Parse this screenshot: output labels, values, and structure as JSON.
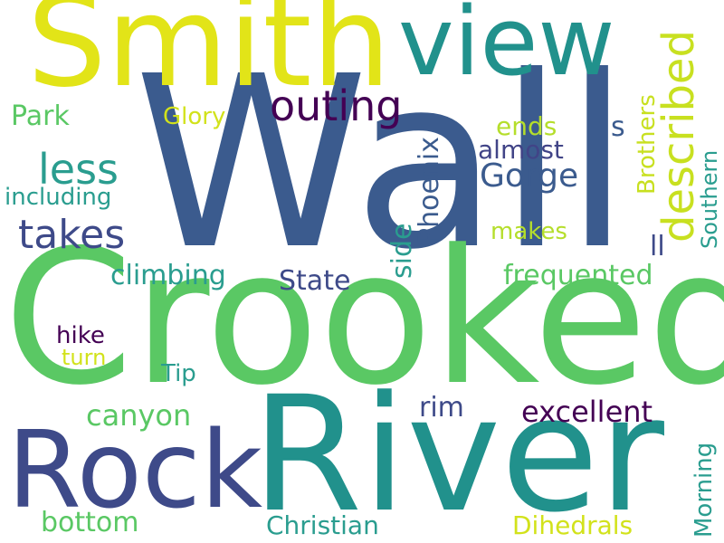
{
  "word_cloud": {
    "words": [
      {
        "text": "Wall",
        "color": "#3b5b8e"
      },
      {
        "text": "Crooked",
        "color": "#5ac864"
      },
      {
        "text": "River",
        "color": "#21918c"
      },
      {
        "text": "Smith",
        "color": "#e2e418"
      },
      {
        "text": "Rock",
        "color": "#3e4a89"
      },
      {
        "text": "view",
        "color": "#21918c"
      },
      {
        "text": "described",
        "color": "#c8e020"
      },
      {
        "text": "outing",
        "color": "#440154"
      },
      {
        "text": "less",
        "color": "#2a9d8f"
      },
      {
        "text": "takes",
        "color": "#3e4a89"
      },
      {
        "text": "Gorge",
        "color": "#3b5b8e"
      },
      {
        "text": "Park",
        "color": "#5ac864"
      },
      {
        "text": "Glory",
        "color": "#d2e21b"
      },
      {
        "text": "including",
        "color": "#2a9d8f"
      },
      {
        "text": "ends",
        "color": "#b5de2b"
      },
      {
        "text": "almost",
        "color": "#414487"
      },
      {
        "text": "s",
        "color": "#3b5b8e"
      },
      {
        "text": "Brothers",
        "color": "#c8e020"
      },
      {
        "text": "Phoenix",
        "color": "#3b5b8e"
      },
      {
        "text": "side",
        "color": "#2a9d8f"
      },
      {
        "text": "makes",
        "color": "#b5de2b"
      },
      {
        "text": "ll",
        "color": "#3e4a89"
      },
      {
        "text": "Southern",
        "color": "#2a9d8f"
      },
      {
        "text": "climbing",
        "color": "#2a9d8f"
      },
      {
        "text": "State",
        "color": "#3e4a89"
      },
      {
        "text": "frequented",
        "color": "#5ac864"
      },
      {
        "text": "hike",
        "color": "#440154"
      },
      {
        "text": "turn",
        "color": "#d2e21b"
      },
      {
        "text": "Tip",
        "color": "#2a9d8f"
      },
      {
        "text": "rim",
        "color": "#3e4a89"
      },
      {
        "text": "excellent",
        "color": "#440154"
      },
      {
        "text": "canyon",
        "color": "#5ac864"
      },
      {
        "text": "bottom",
        "color": "#5ac864"
      },
      {
        "text": "Christian",
        "color": "#2a9d8f"
      },
      {
        "text": "Dihedrals",
        "color": "#d2e21b"
      },
      {
        "text": "Morning",
        "color": "#2a9d8f"
      }
    ]
  }
}
